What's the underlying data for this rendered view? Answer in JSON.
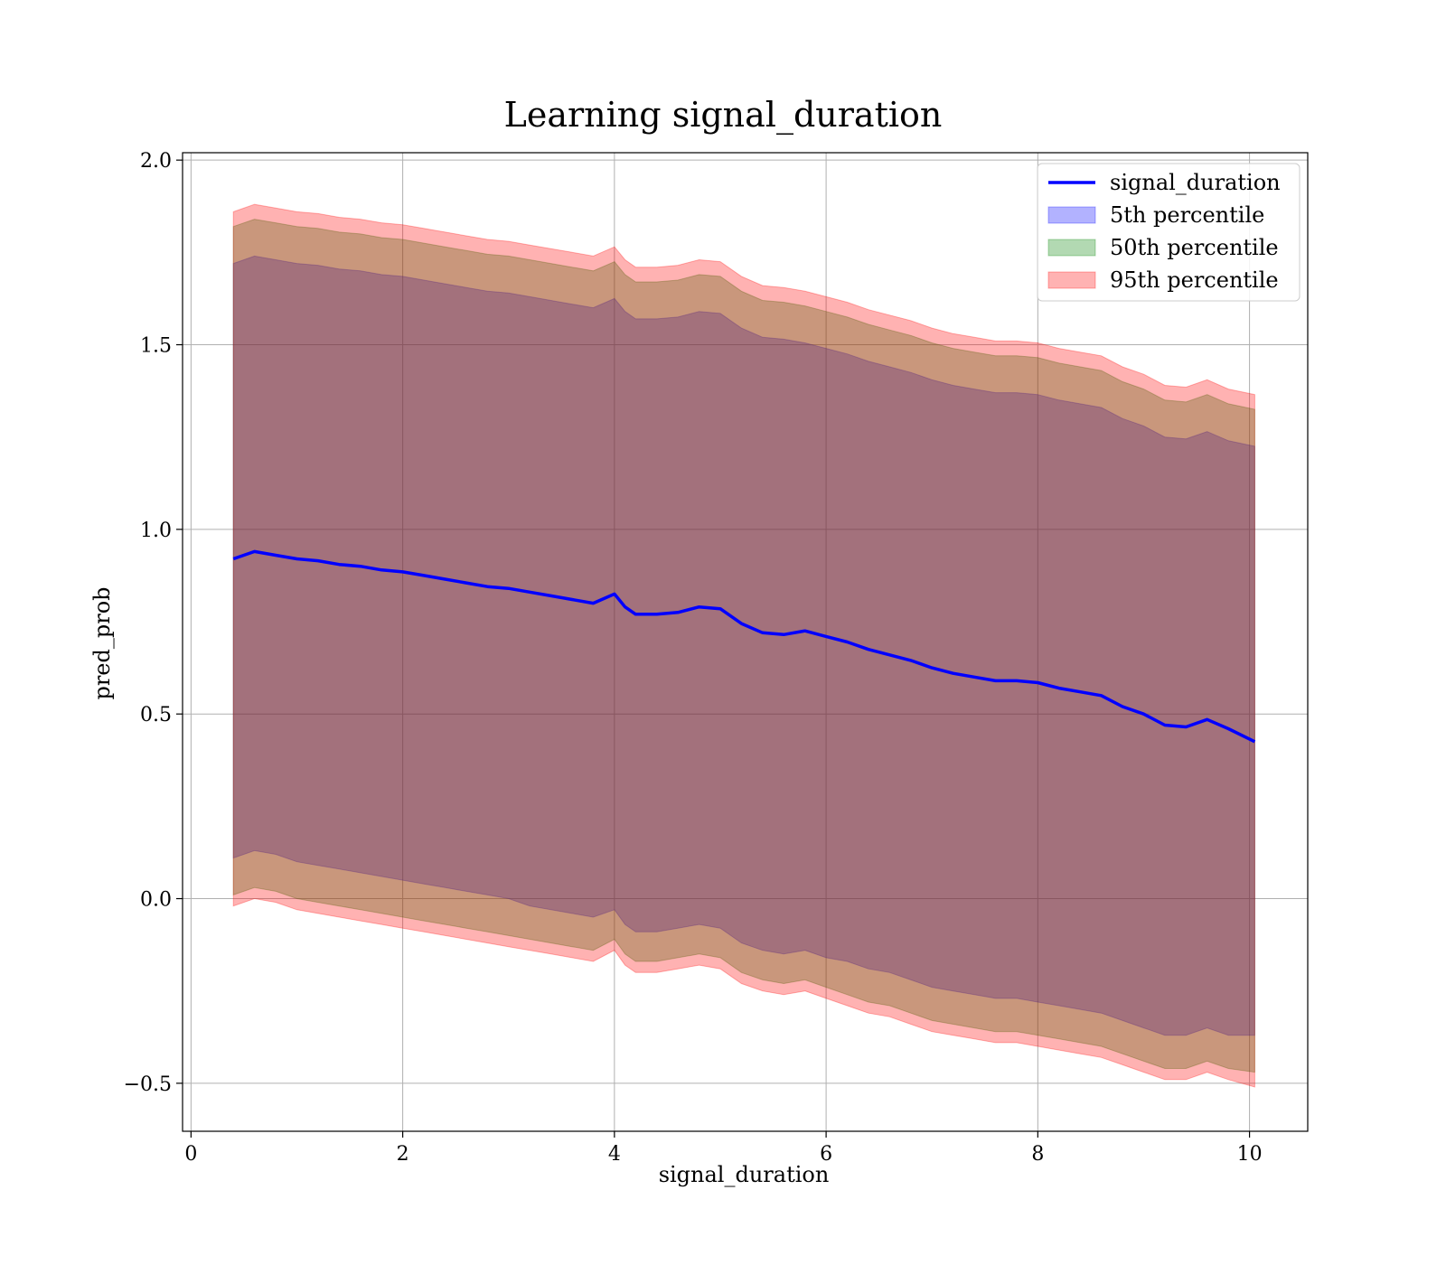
{
  "chart_data": {
    "type": "area",
    "title": "Learning signal_duration",
    "xlabel": "signal_duration",
    "ylabel": "pred_prob",
    "xlim": [
      -0.08,
      10.55
    ],
    "ylim": [
      -0.63,
      2.02
    ],
    "xticks": [
      0,
      2,
      4,
      6,
      8,
      10
    ],
    "xtick_labels": [
      "0",
      "2",
      "4",
      "6",
      "8",
      "10"
    ],
    "yticks": [
      -0.5,
      0.0,
      0.5,
      1.0,
      1.5,
      2.0
    ],
    "ytick_labels": [
      "−0.5",
      "0.0",
      "0.5",
      "1.0",
      "1.5",
      "2.0"
    ],
    "grid": true,
    "legend_position": "top-right",
    "x": [
      0.4,
      0.6,
      0.8,
      1.0,
      1.2,
      1.4,
      1.6,
      1.8,
      2.0,
      2.2,
      2.4,
      2.6,
      2.8,
      3.0,
      3.2,
      3.4,
      3.6,
      3.8,
      4.0,
      4.1,
      4.2,
      4.4,
      4.6,
      4.8,
      5.0,
      5.2,
      5.4,
      5.6,
      5.8,
      6.0,
      6.2,
      6.4,
      6.6,
      6.8,
      7.0,
      7.2,
      7.4,
      7.6,
      7.8,
      8.0,
      8.2,
      8.4,
      8.6,
      8.8,
      9.0,
      9.2,
      9.4,
      9.6,
      9.8,
      10.05
    ],
    "series": [
      {
        "name": "signal_duration",
        "kind": "line",
        "color": "#0000ff",
        "values": [
          0.92,
          0.94,
          0.93,
          0.92,
          0.915,
          0.905,
          0.9,
          0.89,
          0.885,
          0.875,
          0.865,
          0.855,
          0.845,
          0.84,
          0.83,
          0.82,
          0.81,
          0.8,
          0.825,
          0.79,
          0.77,
          0.77,
          0.775,
          0.79,
          0.785,
          0.745,
          0.72,
          0.715,
          0.725,
          0.71,
          0.695,
          0.675,
          0.66,
          0.645,
          0.625,
          0.61,
          0.6,
          0.59,
          0.59,
          0.585,
          0.57,
          0.56,
          0.55,
          0.52,
          0.5,
          0.47,
          0.465,
          0.485,
          0.46,
          0.425
        ]
      },
      {
        "name": "5th percentile",
        "kind": "band",
        "color": "#0000ff",
        "lower": [
          0.11,
          0.13,
          0.12,
          0.1,
          0.09,
          0.08,
          0.07,
          0.06,
          0.05,
          0.04,
          0.03,
          0.02,
          0.01,
          0.0,
          -0.02,
          -0.03,
          -0.04,
          -0.05,
          -0.03,
          -0.07,
          -0.09,
          -0.09,
          -0.08,
          -0.07,
          -0.08,
          -0.12,
          -0.14,
          -0.15,
          -0.14,
          -0.16,
          -0.17,
          -0.19,
          -0.2,
          -0.22,
          -0.24,
          -0.25,
          -0.26,
          -0.27,
          -0.27,
          -0.28,
          -0.29,
          -0.3,
          -0.31,
          -0.33,
          -0.35,
          -0.37,
          -0.37,
          -0.35,
          -0.37,
          -0.37
        ],
        "upper": [
          1.72,
          1.74,
          1.73,
          1.72,
          1.715,
          1.705,
          1.7,
          1.69,
          1.685,
          1.675,
          1.665,
          1.655,
          1.645,
          1.64,
          1.63,
          1.62,
          1.61,
          1.6,
          1.625,
          1.59,
          1.57,
          1.57,
          1.575,
          1.59,
          1.585,
          1.545,
          1.52,
          1.515,
          1.505,
          1.49,
          1.475,
          1.455,
          1.44,
          1.425,
          1.405,
          1.39,
          1.38,
          1.37,
          1.37,
          1.365,
          1.35,
          1.34,
          1.33,
          1.3,
          1.28,
          1.25,
          1.245,
          1.265,
          1.24,
          1.225
        ]
      },
      {
        "name": "50th percentile",
        "kind": "band",
        "color": "#008000",
        "lower": [
          0.01,
          0.03,
          0.02,
          0.0,
          -0.01,
          -0.02,
          -0.03,
          -0.04,
          -0.05,
          -0.06,
          -0.07,
          -0.08,
          -0.09,
          -0.1,
          -0.11,
          -0.12,
          -0.13,
          -0.14,
          -0.11,
          -0.15,
          -0.17,
          -0.17,
          -0.16,
          -0.15,
          -0.16,
          -0.2,
          -0.22,
          -0.23,
          -0.22,
          -0.24,
          -0.26,
          -0.28,
          -0.29,
          -0.31,
          -0.33,
          -0.34,
          -0.35,
          -0.36,
          -0.36,
          -0.37,
          -0.38,
          -0.39,
          -0.4,
          -0.42,
          -0.44,
          -0.46,
          -0.46,
          -0.44,
          -0.46,
          -0.47
        ],
        "upper": [
          1.82,
          1.84,
          1.83,
          1.82,
          1.815,
          1.805,
          1.8,
          1.79,
          1.785,
          1.775,
          1.765,
          1.755,
          1.745,
          1.74,
          1.73,
          1.72,
          1.71,
          1.7,
          1.725,
          1.69,
          1.67,
          1.67,
          1.675,
          1.69,
          1.685,
          1.645,
          1.62,
          1.615,
          1.605,
          1.59,
          1.575,
          1.555,
          1.54,
          1.525,
          1.505,
          1.49,
          1.48,
          1.47,
          1.47,
          1.465,
          1.45,
          1.44,
          1.43,
          1.4,
          1.38,
          1.35,
          1.345,
          1.365,
          1.34,
          1.325
        ]
      },
      {
        "name": "95th percentile",
        "kind": "band",
        "color": "#ff0000",
        "lower": [
          -0.02,
          0.0,
          -0.01,
          -0.03,
          -0.04,
          -0.05,
          -0.06,
          -0.07,
          -0.08,
          -0.09,
          -0.1,
          -0.11,
          -0.12,
          -0.13,
          -0.14,
          -0.15,
          -0.16,
          -0.17,
          -0.14,
          -0.18,
          -0.2,
          -0.2,
          -0.19,
          -0.18,
          -0.19,
          -0.23,
          -0.25,
          -0.26,
          -0.25,
          -0.27,
          -0.29,
          -0.31,
          -0.32,
          -0.34,
          -0.36,
          -0.37,
          -0.38,
          -0.39,
          -0.39,
          -0.4,
          -0.41,
          -0.42,
          -0.43,
          -0.45,
          -0.47,
          -0.49,
          -0.49,
          -0.47,
          -0.49,
          -0.51
        ],
        "upper": [
          1.86,
          1.88,
          1.87,
          1.86,
          1.855,
          1.845,
          1.84,
          1.83,
          1.825,
          1.815,
          1.805,
          1.795,
          1.785,
          1.78,
          1.77,
          1.76,
          1.75,
          1.74,
          1.765,
          1.73,
          1.71,
          1.71,
          1.715,
          1.73,
          1.725,
          1.685,
          1.66,
          1.655,
          1.645,
          1.63,
          1.615,
          1.595,
          1.58,
          1.565,
          1.545,
          1.53,
          1.52,
          1.51,
          1.51,
          1.505,
          1.49,
          1.48,
          1.47,
          1.44,
          1.42,
          1.39,
          1.385,
          1.405,
          1.38,
          1.365
        ]
      }
    ]
  }
}
